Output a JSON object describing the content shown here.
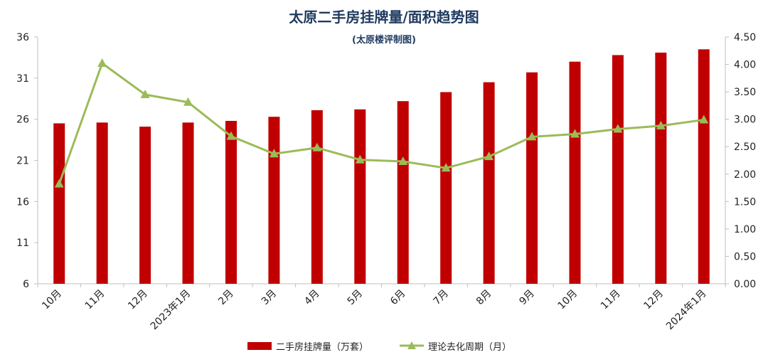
{
  "chart_data": {
    "type": "bar",
    "title": "太原二手房挂牌量/面积趋势图",
    "subtitle": "(太原楼评制图)",
    "categories": [
      "10月",
      "11月",
      "12月",
      "2023年1月",
      "2月",
      "3月",
      "4月",
      "5月",
      "6月",
      "7月",
      "8月",
      "9月",
      "10月",
      "11月",
      "12月",
      "2024年1月"
    ],
    "series": [
      {
        "name": "二手房挂牌量（万套）",
        "type": "bar",
        "axis": "left",
        "color": "#c00000",
        "values": [
          25.5,
          25.6,
          25.1,
          25.6,
          25.8,
          26.3,
          27.1,
          27.2,
          28.2,
          29.3,
          30.5,
          31.7,
          33.0,
          33.8,
          34.1,
          34.5
        ]
      },
      {
        "name": "理论去化周期（月）",
        "type": "line",
        "axis": "right",
        "color": "#9bbb59",
        "marker": "triangle",
        "values": [
          1.82,
          4.02,
          3.45,
          3.31,
          2.69,
          2.37,
          2.48,
          2.26,
          2.23,
          2.11,
          2.32,
          2.68,
          2.73,
          2.82,
          2.88,
          2.99
        ]
      }
    ],
    "y_left": {
      "min": 6,
      "max": 36,
      "ticks": [
        "36",
        "31",
        "26",
        "21",
        "16",
        "11",
        "6"
      ]
    },
    "y_right": {
      "min": 0,
      "max": 4.5,
      "ticks": [
        "4.50",
        "4.00",
        "3.50",
        "3.00",
        "2.50",
        "2.00",
        "1.50",
        "1.00",
        "0.50",
        "0.00"
      ]
    },
    "grid": false,
    "legend_position": "bottom"
  }
}
